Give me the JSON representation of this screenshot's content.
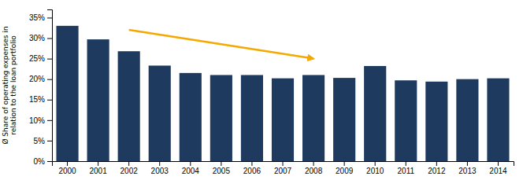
{
  "chart_data": {
    "type": "bar",
    "ylabel": "Ø Share of operating expenses in\nrelation to the loan portfolio",
    "categories": [
      "2000",
      "2001",
      "2002",
      "2003",
      "2004",
      "2005",
      "2006",
      "2007",
      "2008",
      "2009",
      "2010",
      "2011",
      "2012",
      "2013",
      "2014"
    ],
    "values": [
      33.0,
      29.7,
      26.8,
      23.3,
      21.5,
      21.0,
      21.0,
      20.2,
      21.0,
      20.3,
      23.2,
      19.7,
      19.4,
      20.0,
      20.2
    ],
    "color": "#1e3a5f",
    "ylim": [
      0,
      37
    ],
    "yticks": [
      {
        "value": 0,
        "label": "0%"
      },
      {
        "value": 5,
        "label": "5%"
      },
      {
        "value": 10,
        "label": "10%"
      },
      {
        "value": 15,
        "label": "15%"
      },
      {
        "value": 20,
        "label": "20%"
      },
      {
        "value": 25,
        "label": "25%"
      },
      {
        "value": 30,
        "label": "30%"
      },
      {
        "value": 35,
        "label": "35%"
      }
    ],
    "grid": false,
    "annotations": [
      {
        "type": "arrow",
        "x": "2002",
        "y": 32.0,
        "x_end": "2008",
        "y_end": 25.0,
        "color": "#f5a800"
      }
    ]
  }
}
